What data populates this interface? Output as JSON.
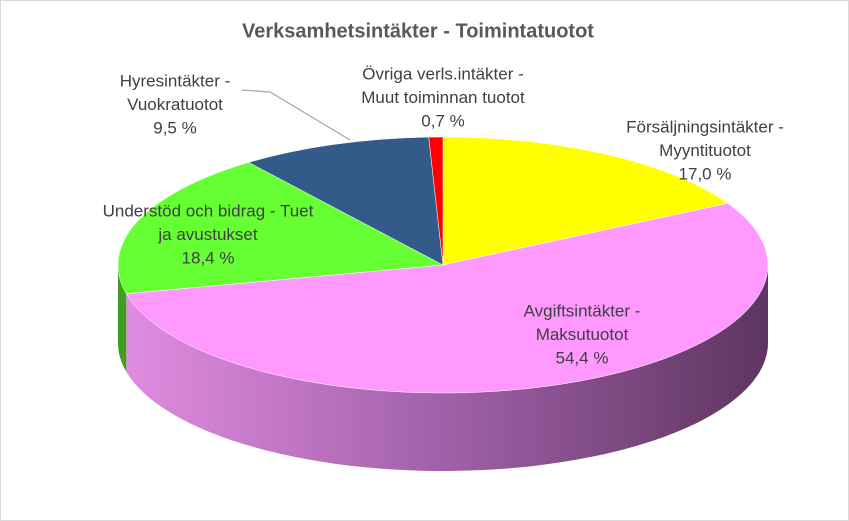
{
  "chart_data": {
    "type": "pie3d",
    "title": "Verksamhetsintäkter - Toimintatuotot",
    "categories": [
      [
        "Försäljningsintäkter -",
        "Myyntituotot"
      ],
      [
        "Avgiftsintäkter -",
        "Maksutuotot"
      ],
      [
        "Understöd och bidrag - Tuet",
        "ja avustukset"
      ],
      [
        "Hyresintäkter -",
        "Vuokratuotot"
      ],
      [
        "Övriga verls.intäkter -",
        "Muut toiminnan tuotot"
      ]
    ],
    "values": [
      17.0,
      54.4,
      18.4,
      9.5,
      0.7
    ],
    "value_labels": [
      "17,0 %",
      "54,4 %",
      "18,4 %",
      "9,5 %",
      "0,7 %"
    ],
    "colors": [
      "#ffff00",
      "#ff99ff",
      "#66ff33",
      "#335b8a",
      "#ff0000"
    ],
    "side_colors": [
      "#b3b300",
      "#5e3560",
      "#3f9e20",
      "#1f3a5a",
      "#a00000"
    ]
  }
}
